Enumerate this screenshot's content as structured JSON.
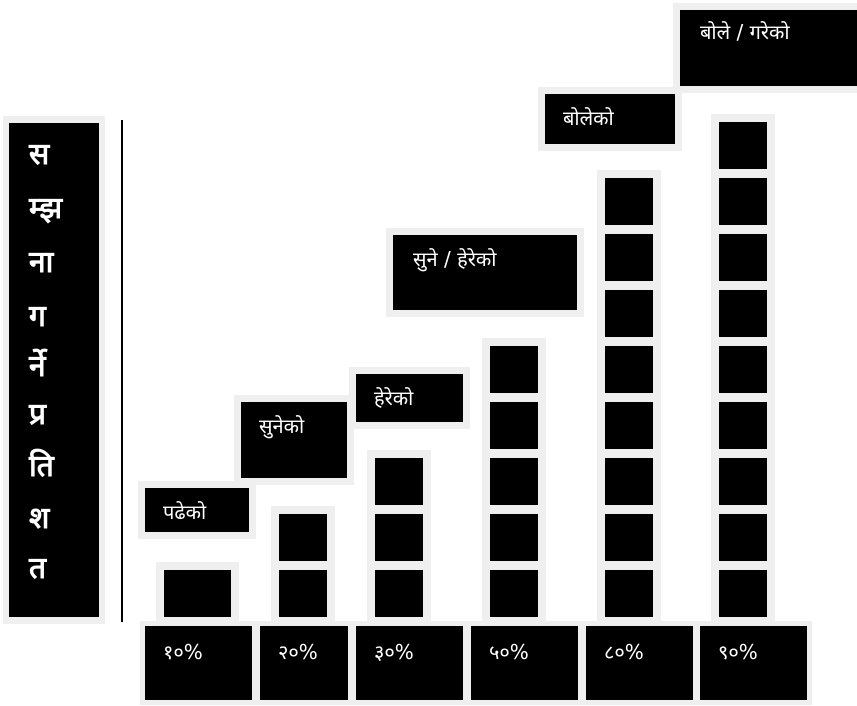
{
  "chart_data": {
    "type": "bar",
    "ylabel": "सम्झना गर्ने प्रतिशत",
    "ylabel_chars": [
      "स",
      "म्झ",
      "ना",
      "ग",
      "र्ने",
      "प्र",
      "ति",
      "श",
      "त"
    ],
    "categories": [
      "पढेको",
      "सुनेको",
      "हेरेको",
      "सुने / हेरेको",
      "बोलेको",
      "बोले / गरेको"
    ],
    "tick_labels": [
      "१०%",
      "२०%",
      "३०%",
      "५०%",
      "८०%",
      "९०%"
    ],
    "values": [
      10,
      20,
      30,
      50,
      80,
      90
    ],
    "ylim": [
      0,
      100
    ],
    "legend": "none",
    "grid": false,
    "colors": {
      "block": "#000000",
      "frame": "#efefef",
      "text": "#ffffff"
    }
  }
}
